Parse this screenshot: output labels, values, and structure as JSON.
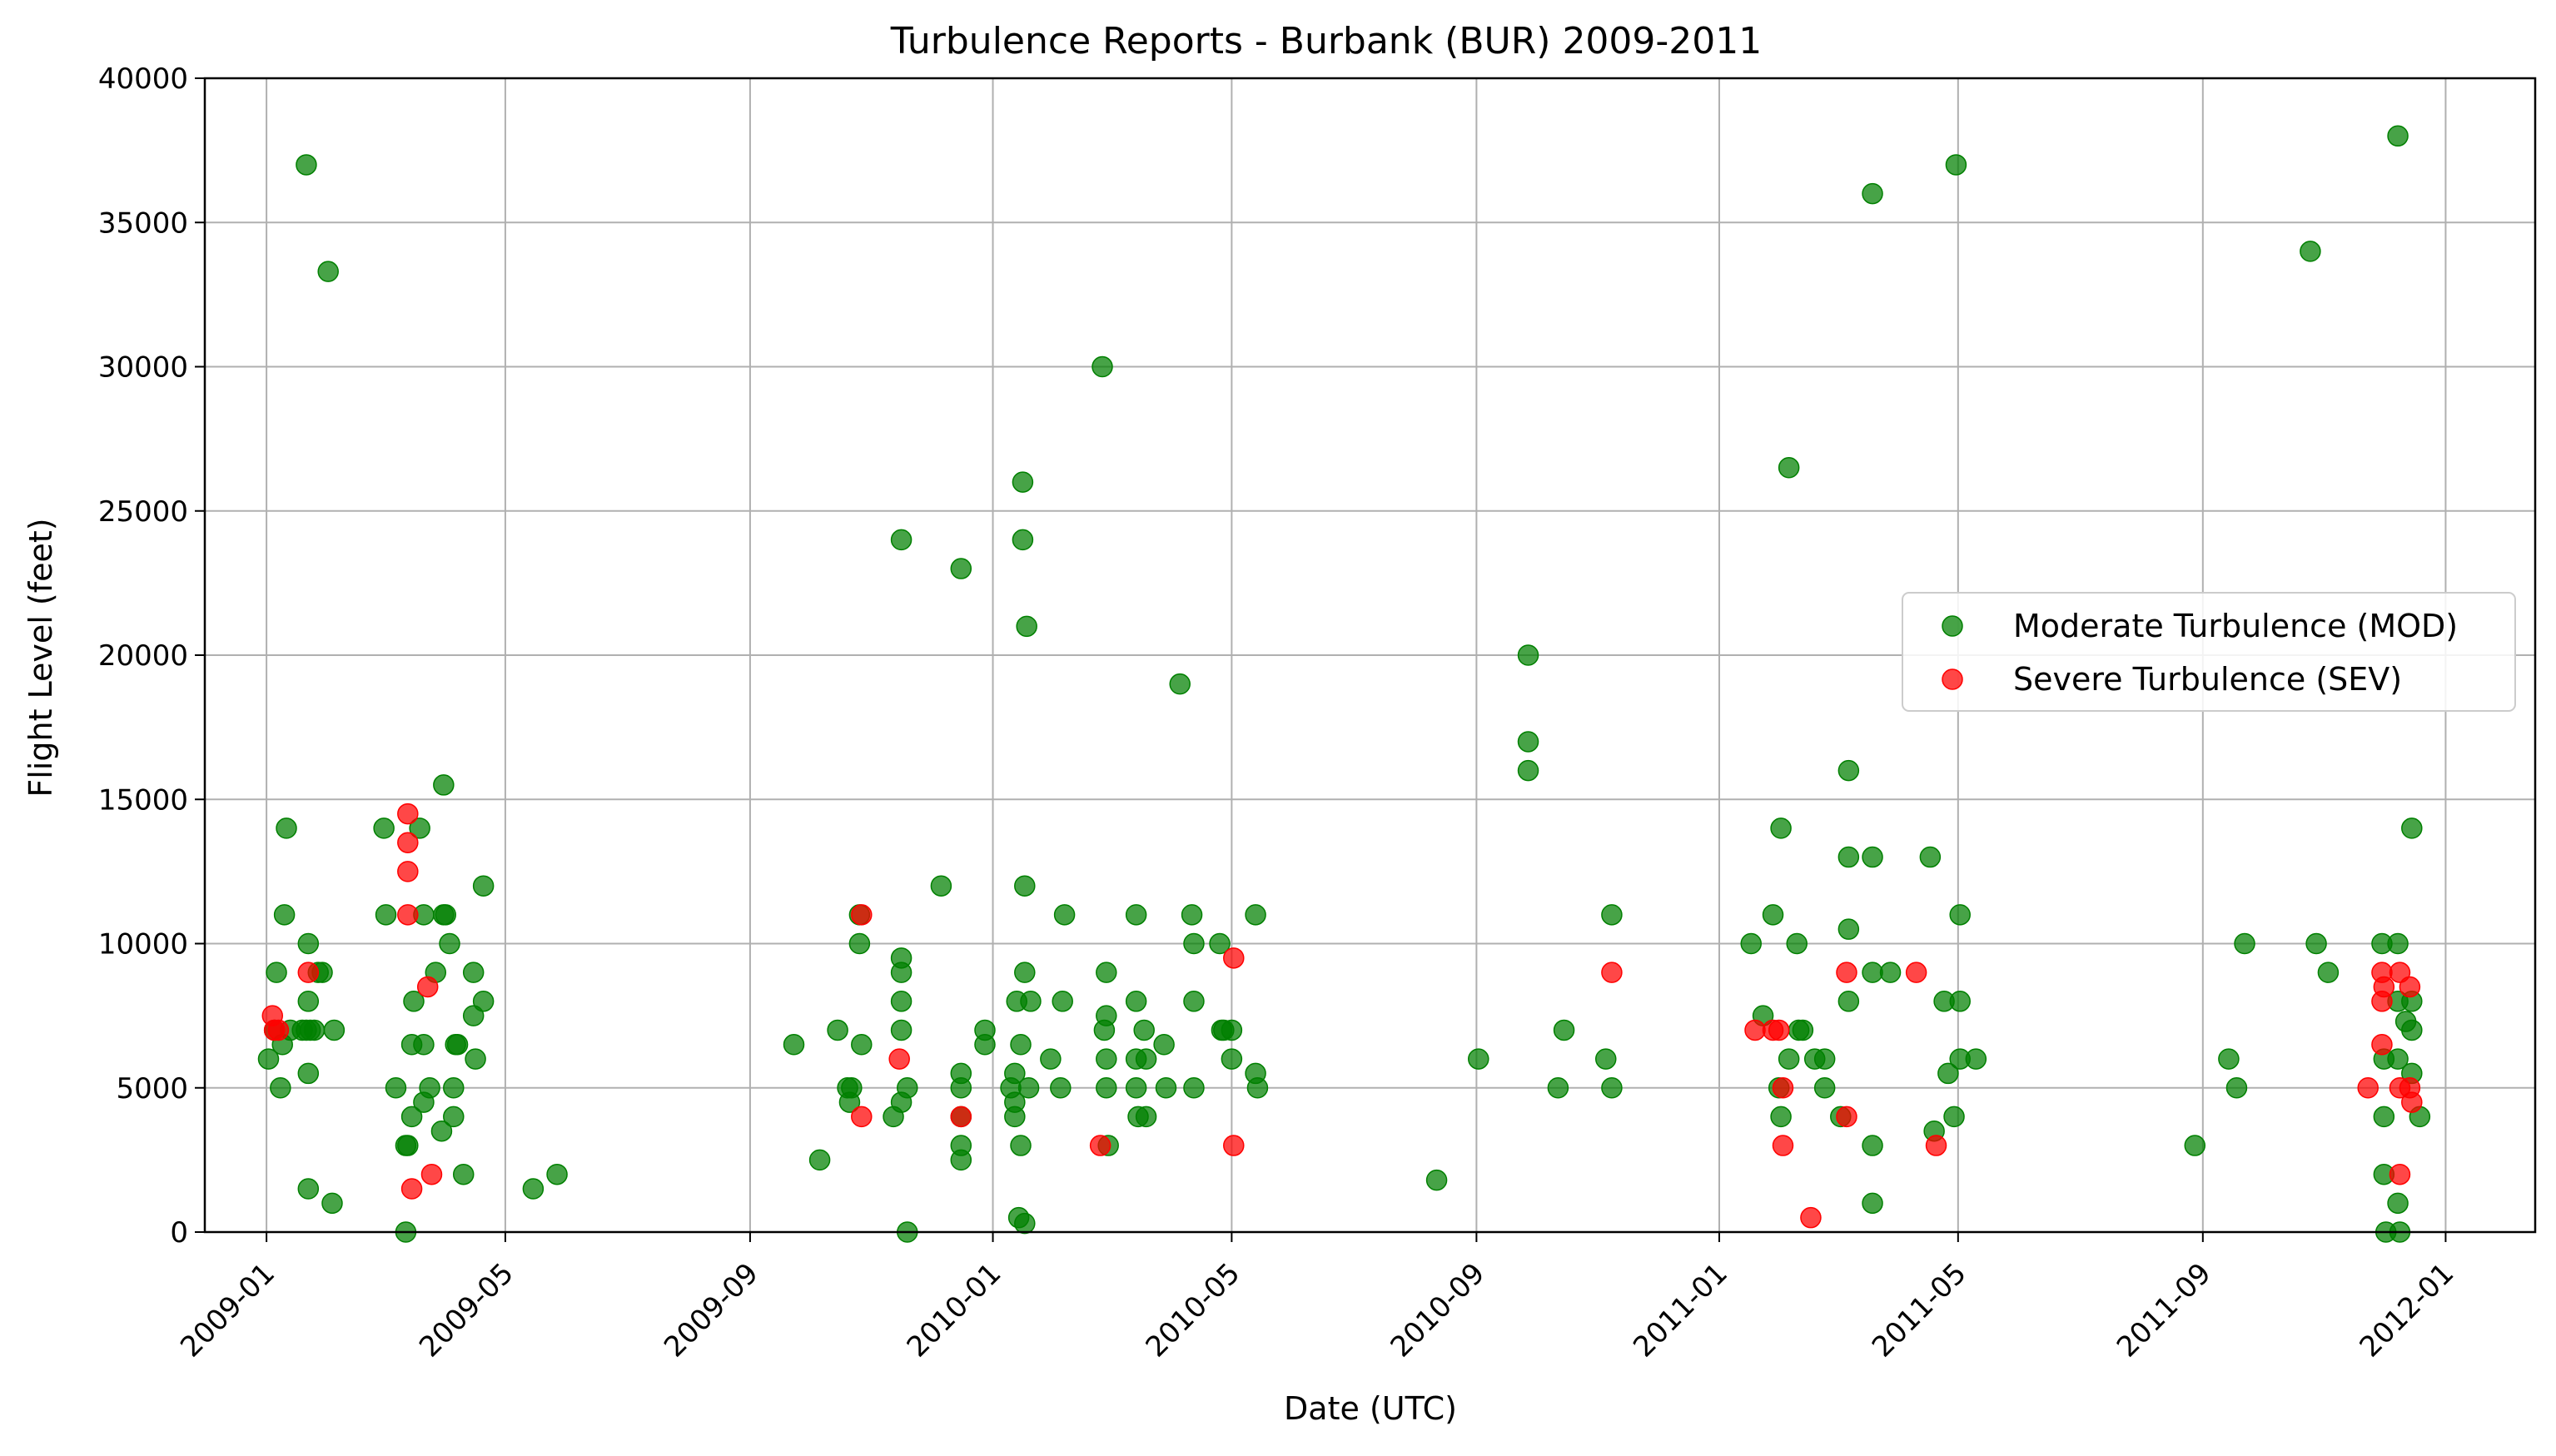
{
  "chart_data": {
    "type": "scatter",
    "title": "Turbulence Reports - Burbank (BUR) 2009-2011",
    "xlabel": "Date (UTC)",
    "ylabel": "Flight Level (feet)",
    "xlim": [
      "2008-12-01",
      "2012-02-15"
    ],
    "ylim": [
      0,
      40000
    ],
    "x_ticks": [
      "2009-01",
      "2009-05",
      "2009-09",
      "2010-01",
      "2010-05",
      "2010-09",
      "2011-01",
      "2011-05",
      "2011-09",
      "2012-01"
    ],
    "y_ticks": [
      0,
      5000,
      10000,
      15000,
      20000,
      25000,
      30000,
      35000,
      40000
    ],
    "grid": true,
    "legend_position": "center-right",
    "series": [
      {
        "name": "Moderate Turbulence (MOD)",
        "color": "#008000",
        "points": [
          [
            "2009-01-02",
            6000
          ],
          [
            "2009-01-05",
            7000
          ],
          [
            "2009-01-06",
            9000
          ],
          [
            "2009-01-08",
            5000
          ],
          [
            "2009-01-09",
            6500
          ],
          [
            "2009-01-10",
            11000
          ],
          [
            "2009-01-11",
            14000
          ],
          [
            "2009-01-13",
            7000
          ],
          [
            "2009-01-19",
            7000
          ],
          [
            "2009-01-21",
            7000
          ],
          [
            "2009-01-21",
            37000
          ],
          [
            "2009-01-22",
            10000
          ],
          [
            "2009-01-22",
            8000
          ],
          [
            "2009-01-22",
            5500
          ],
          [
            "2009-01-22",
            1500
          ],
          [
            "2009-01-23",
            7000
          ],
          [
            "2009-01-25",
            7000
          ],
          [
            "2009-01-27",
            9000
          ],
          [
            "2009-01-29",
            9000
          ],
          [
            "2009-02-01",
            33300
          ],
          [
            "2009-02-03",
            1000
          ],
          [
            "2009-02-04",
            7000
          ],
          [
            "2009-03-01",
            14000
          ],
          [
            "2009-03-02",
            11000
          ],
          [
            "2009-03-07",
            5000
          ],
          [
            "2009-03-12",
            0
          ],
          [
            "2009-03-12",
            3000
          ],
          [
            "2009-03-13",
            3000
          ],
          [
            "2009-03-15",
            6500
          ],
          [
            "2009-03-15",
            4000
          ],
          [
            "2009-03-16",
            8000
          ],
          [
            "2009-03-19",
            14000
          ],
          [
            "2009-03-21",
            11000
          ],
          [
            "2009-03-21",
            6500
          ],
          [
            "2009-03-21",
            4500
          ],
          [
            "2009-03-24",
            5000
          ],
          [
            "2009-03-27",
            9000
          ],
          [
            "2009-03-30",
            3500
          ],
          [
            "2009-03-31",
            15500
          ],
          [
            "2009-03-31",
            11000
          ],
          [
            "2009-04-01",
            11000
          ],
          [
            "2009-04-03",
            10000
          ],
          [
            "2009-04-05",
            4000
          ],
          [
            "2009-04-05",
            5000
          ],
          [
            "2009-04-06",
            6500
          ],
          [
            "2009-04-07",
            6500
          ],
          [
            "2009-04-10",
            2000
          ],
          [
            "2009-04-15",
            9000
          ],
          [
            "2009-04-15",
            7500
          ],
          [
            "2009-04-16",
            6000
          ],
          [
            "2009-04-20",
            12000
          ],
          [
            "2009-04-20",
            8000
          ],
          [
            "2009-05-15",
            1500
          ],
          [
            "2009-05-27",
            2000
          ],
          [
            "2009-09-23",
            6500
          ],
          [
            "2009-10-06",
            2500
          ],
          [
            "2009-10-15",
            7000
          ],
          [
            "2009-10-20",
            5000
          ],
          [
            "2009-10-21",
            4500
          ],
          [
            "2009-10-22",
            5000
          ],
          [
            "2009-10-26",
            10000
          ],
          [
            "2009-10-26",
            11000
          ],
          [
            "2009-10-27",
            6500
          ],
          [
            "2009-11-12",
            4000
          ],
          [
            "2009-11-16",
            24000
          ],
          [
            "2009-11-16",
            9500
          ],
          [
            "2009-11-16",
            9000
          ],
          [
            "2009-11-16",
            8000
          ],
          [
            "2009-11-16",
            7000
          ],
          [
            "2009-11-16",
            4500
          ],
          [
            "2009-11-19",
            5000
          ],
          [
            "2009-11-19",
            0
          ],
          [
            "2009-12-06",
            12000
          ],
          [
            "2009-12-16",
            23000
          ],
          [
            "2009-12-16",
            5500
          ],
          [
            "2009-12-16",
            5000
          ],
          [
            "2009-12-16",
            4000
          ],
          [
            "2009-12-16",
            3000
          ],
          [
            "2009-12-16",
            2500
          ],
          [
            "2009-12-28",
            7000
          ],
          [
            "2009-12-28",
            6500
          ],
          [
            "2010-01-10",
            5000
          ],
          [
            "2010-01-12",
            4500
          ],
          [
            "2010-01-12",
            5500
          ],
          [
            "2010-01-12",
            4000
          ],
          [
            "2010-01-13",
            8000
          ],
          [
            "2010-01-14",
            500
          ],
          [
            "2010-01-15",
            6500
          ],
          [
            "2010-01-15",
            3000
          ],
          [
            "2010-01-16",
            26000
          ],
          [
            "2010-01-16",
            24000
          ],
          [
            "2010-01-17",
            12000
          ],
          [
            "2010-01-17",
            9000
          ],
          [
            "2010-01-17",
            300
          ],
          [
            "2010-01-18",
            21000
          ],
          [
            "2010-01-19",
            5000
          ],
          [
            "2010-01-20",
            8000
          ],
          [
            "2010-01-30",
            6000
          ],
          [
            "2010-02-04",
            5000
          ],
          [
            "2010-02-05",
            8000
          ],
          [
            "2010-02-06",
            11000
          ],
          [
            "2010-02-25",
            30000
          ],
          [
            "2010-02-26",
            7000
          ],
          [
            "2010-02-27",
            9000
          ],
          [
            "2010-02-27",
            7500
          ],
          [
            "2010-02-27",
            6000
          ],
          [
            "2010-02-27",
            5000
          ],
          [
            "2010-02-28",
            3000
          ],
          [
            "2010-03-14",
            11000
          ],
          [
            "2010-03-14",
            8000
          ],
          [
            "2010-03-14",
            6000
          ],
          [
            "2010-03-14",
            5000
          ],
          [
            "2010-03-15",
            4000
          ],
          [
            "2010-03-18",
            7000
          ],
          [
            "2010-03-19",
            6000
          ],
          [
            "2010-03-19",
            4000
          ],
          [
            "2010-03-28",
            6500
          ],
          [
            "2010-03-29",
            5000
          ],
          [
            "2010-04-05",
            19000
          ],
          [
            "2010-04-11",
            11000
          ],
          [
            "2010-04-12",
            10000
          ],
          [
            "2010-04-12",
            8000
          ],
          [
            "2010-04-12",
            5000
          ],
          [
            "2010-04-25",
            10000
          ],
          [
            "2010-04-26",
            7000
          ],
          [
            "2010-04-27",
            7000
          ],
          [
            "2010-05-01",
            7000
          ],
          [
            "2010-05-01",
            6000
          ],
          [
            "2010-05-13",
            11000
          ],
          [
            "2010-05-13",
            5500
          ],
          [
            "2010-05-14",
            5000
          ],
          [
            "2010-08-12",
            1800
          ],
          [
            "2010-09-02",
            6000
          ],
          [
            "2010-09-27",
            20000
          ],
          [
            "2010-09-27",
            17000
          ],
          [
            "2010-09-27",
            16000
          ],
          [
            "2010-10-12",
            5000
          ],
          [
            "2010-10-15",
            7000
          ],
          [
            "2010-11-05",
            6000
          ],
          [
            "2010-11-08",
            11000
          ],
          [
            "2010-11-08",
            5000
          ],
          [
            "2011-01-17",
            10000
          ],
          [
            "2011-01-23",
            7500
          ],
          [
            "2011-01-28",
            11000
          ],
          [
            "2011-01-31",
            5000
          ],
          [
            "2011-02-01",
            4000
          ],
          [
            "2011-02-01",
            14000
          ],
          [
            "2011-02-05",
            26500
          ],
          [
            "2011-02-05",
            6000
          ],
          [
            "2011-02-09",
            10000
          ],
          [
            "2011-02-10",
            7000
          ],
          [
            "2011-02-12",
            7000
          ],
          [
            "2011-02-18",
            6000
          ],
          [
            "2011-02-23",
            6000
          ],
          [
            "2011-02-23",
            5000
          ],
          [
            "2011-03-03",
            4000
          ],
          [
            "2011-03-07",
            16000
          ],
          [
            "2011-03-07",
            13000
          ],
          [
            "2011-03-07",
            10500
          ],
          [
            "2011-03-07",
            8000
          ],
          [
            "2011-03-19",
            36000
          ],
          [
            "2011-03-19",
            13000
          ],
          [
            "2011-03-19",
            9000
          ],
          [
            "2011-03-19",
            3000
          ],
          [
            "2011-03-19",
            1000
          ],
          [
            "2011-03-28",
            9000
          ],
          [
            "2011-04-17",
            13000
          ],
          [
            "2011-04-19",
            3500
          ],
          [
            "2011-04-24",
            8000
          ],
          [
            "2011-04-26",
            5500
          ],
          [
            "2011-04-30",
            37000
          ],
          [
            "2011-04-29",
            4000
          ],
          [
            "2011-05-02",
            11000
          ],
          [
            "2011-05-02",
            8000
          ],
          [
            "2011-05-02",
            6000
          ],
          [
            "2011-05-10",
            6000
          ],
          [
            "2011-08-28",
            3000
          ],
          [
            "2011-09-14",
            6000
          ],
          [
            "2011-09-18",
            5000
          ],
          [
            "2011-09-22",
            10000
          ],
          [
            "2011-10-25",
            34000
          ],
          [
            "2011-10-28",
            10000
          ],
          [
            "2011-11-03",
            9000
          ],
          [
            "2011-11-30",
            10000
          ],
          [
            "2011-12-01",
            6000
          ],
          [
            "2011-12-01",
            4000
          ],
          [
            "2011-12-01",
            2000
          ],
          [
            "2011-12-02",
            0
          ],
          [
            "2011-12-08",
            38000
          ],
          [
            "2011-12-08",
            10000
          ],
          [
            "2011-12-08",
            8000
          ],
          [
            "2011-12-08",
            6000
          ],
          [
            "2011-12-08",
            1000
          ],
          [
            "2011-12-09",
            0
          ],
          [
            "2011-12-12",
            7300
          ],
          [
            "2011-12-15",
            14000
          ],
          [
            "2011-12-15",
            8000
          ],
          [
            "2011-12-15",
            7000
          ],
          [
            "2011-12-15",
            5500
          ],
          [
            "2011-12-19",
            4000
          ]
        ]
      },
      {
        "name": "Severe Turbulence (SEV)",
        "color": "#ff0000",
        "points": [
          [
            "2009-01-04",
            7500
          ],
          [
            "2009-01-05",
            7000
          ],
          [
            "2009-01-07",
            7000
          ],
          [
            "2009-01-22",
            9000
          ],
          [
            "2009-03-13",
            14500
          ],
          [
            "2009-03-13",
            13500
          ],
          [
            "2009-03-13",
            12500
          ],
          [
            "2009-03-13",
            11000
          ],
          [
            "2009-03-15",
            1500
          ],
          [
            "2009-03-23",
            8500
          ],
          [
            "2009-03-25",
            2000
          ],
          [
            "2009-10-27",
            11000
          ],
          [
            "2009-10-27",
            4000
          ],
          [
            "2009-11-15",
            6000
          ],
          [
            "2009-12-16",
            4000
          ],
          [
            "2010-02-24",
            3000
          ],
          [
            "2010-05-02",
            9500
          ],
          [
            "2010-05-02",
            3000
          ],
          [
            "2010-11-08",
            9000
          ],
          [
            "2011-01-19",
            7000
          ],
          [
            "2011-01-28",
            7000
          ],
          [
            "2011-01-31",
            7000
          ],
          [
            "2011-02-02",
            5000
          ],
          [
            "2011-02-02",
            3000
          ],
          [
            "2011-02-16",
            500
          ],
          [
            "2011-03-06",
            9000
          ],
          [
            "2011-03-06",
            4000
          ],
          [
            "2011-04-10",
            9000
          ],
          [
            "2011-04-20",
            3000
          ],
          [
            "2011-11-23",
            5000
          ],
          [
            "2011-11-30",
            9000
          ],
          [
            "2011-11-30",
            8000
          ],
          [
            "2011-11-30",
            6500
          ],
          [
            "2011-12-01",
            8500
          ],
          [
            "2011-12-09",
            9000
          ],
          [
            "2011-12-09",
            5000
          ],
          [
            "2011-12-09",
            2000
          ],
          [
            "2011-12-14",
            8500
          ],
          [
            "2011-12-14",
            5000
          ],
          [
            "2011-12-15",
            4500
          ]
        ]
      }
    ]
  }
}
